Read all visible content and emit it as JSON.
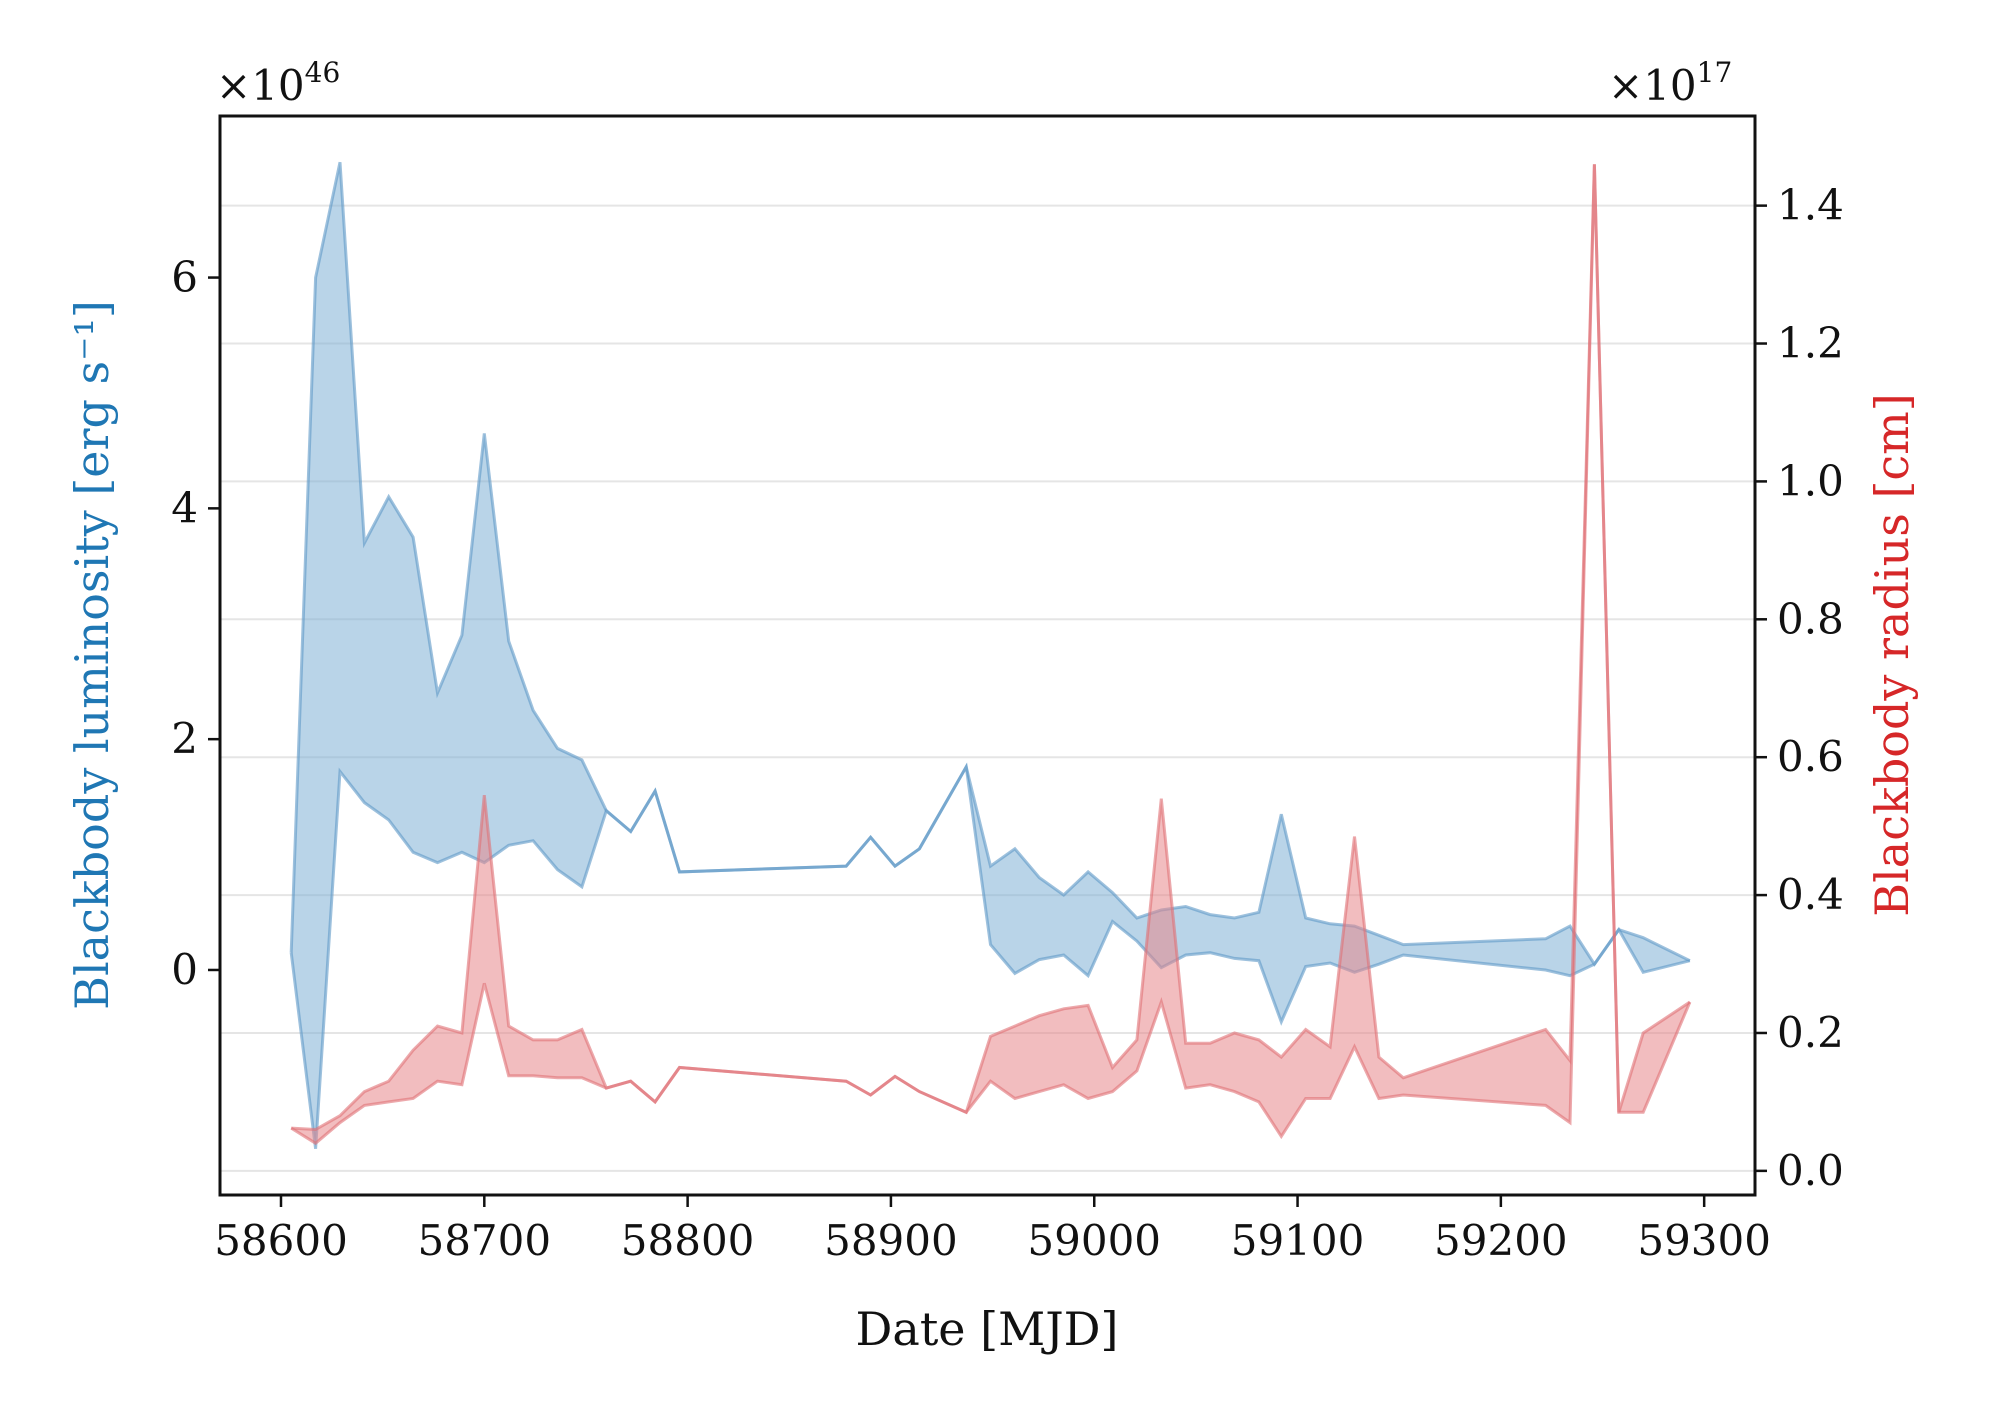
{
  "chart_data": {
    "type": "area",
    "xlabel": "Date [MJD]",
    "ylabel_left": "Blackbody luminosity [erg s⁻¹]",
    "ylabel_right": "Blackbody radius [cm]",
    "left_multiplier": {
      "base": "×10",
      "exp": "46"
    },
    "right_multiplier": {
      "base": "×10",
      "exp": "17"
    },
    "xlim": [
      58570,
      59325
    ],
    "ylim_left": [
      -1.95,
      7.4
    ],
    "ylim_right": [
      -0.035,
      1.53
    ],
    "x_ticks": [
      58600,
      58700,
      58800,
      58900,
      59000,
      59100,
      59200,
      59300
    ],
    "x_tick_labels": [
      "58600",
      "58700",
      "58800",
      "58900",
      "59000",
      "59100",
      "59200",
      "59300"
    ],
    "left_ticks": [
      0,
      2,
      4,
      6
    ],
    "left_tick_labels": [
      "0",
      "2",
      "4",
      "6"
    ],
    "right_ticks": [
      0.0,
      0.2,
      0.4,
      0.6,
      0.8,
      1.0,
      1.2,
      1.4
    ],
    "right_tick_labels": [
      "0.0",
      "0.2",
      "0.4",
      "0.6",
      "0.8",
      "1.0",
      "1.2",
      "1.4"
    ],
    "grid": "horizontal",
    "colors": {
      "luminosity_label": "#1f77b4",
      "radius_label": "#d62728",
      "luminosity_fill": "#7fb0d6",
      "luminosity_line": "#5d98c6",
      "radius_fill": "#e8868a",
      "radius_line": "#e06f75",
      "grid": "#e5e5e5"
    },
    "series": [
      {
        "axis": "left",
        "x": [
          58605,
          58617,
          58629,
          58641,
          58653,
          58665,
          58677,
          58689,
          58700,
          58712,
          58724,
          58736,
          58748,
          58760,
          58772,
          58784,
          58796,
          58878,
          58890,
          58902,
          58914,
          58937,
          58949,
          58961,
          58973,
          58985,
          58997,
          59009,
          59021,
          59033,
          59045,
          59057,
          59069,
          59081,
          59092,
          59104,
          59116,
          59128,
          59140,
          59152,
          59222,
          59234,
          59246,
          59258,
          59270,
          59293
        ],
        "upper": [
          0.15,
          6.0,
          7.0,
          3.7,
          4.1,
          3.75,
          2.4,
          2.9,
          4.65,
          2.85,
          2.25,
          1.92,
          1.82,
          1.38,
          1.2,
          1.55,
          0.85,
          0.9,
          1.15,
          0.9,
          1.05,
          1.76,
          0.9,
          1.05,
          0.8,
          0.65,
          0.85,
          0.67,
          0.45,
          0.52,
          0.55,
          0.48,
          0.45,
          0.5,
          1.35,
          0.45,
          0.4,
          0.38,
          0.3,
          0.22,
          0.27,
          0.38,
          0.05,
          0.35,
          0.28,
          0.08
        ],
        "lower": [
          0.15,
          -1.55,
          1.72,
          1.45,
          1.3,
          1.02,
          0.93,
          1.02,
          0.93,
          1.08,
          1.12,
          0.87,
          0.72,
          1.38,
          1.2,
          1.55,
          0.85,
          0.9,
          1.15,
          0.9,
          1.05,
          1.76,
          0.22,
          -0.03,
          0.09,
          0.13,
          -0.05,
          0.42,
          0.25,
          0.02,
          0.13,
          0.15,
          0.1,
          0.08,
          -0.45,
          0.03,
          0.06,
          -0.02,
          0.05,
          0.13,
          0.0,
          -0.05,
          0.05,
          0.35,
          -0.02,
          0.08
        ]
      },
      {
        "axis": "right",
        "x": [
          58605,
          58617,
          58629,
          58641,
          58653,
          58665,
          58677,
          58689,
          58700,
          58712,
          58724,
          58736,
          58748,
          58760,
          58772,
          58784,
          58796,
          58878,
          58890,
          58902,
          58914,
          58937,
          58949,
          58961,
          58973,
          58985,
          58997,
          59009,
          59021,
          59033,
          59045,
          59057,
          59069,
          59081,
          59092,
          59104,
          59116,
          59128,
          59140,
          59152,
          59222,
          59234,
          59246,
          59258,
          59270,
          59293
        ],
        "upper": [
          0.062,
          0.06,
          0.08,
          0.115,
          0.13,
          0.175,
          0.21,
          0.2,
          0.545,
          0.21,
          0.19,
          0.19,
          0.205,
          0.12,
          0.13,
          0.1,
          0.15,
          0.13,
          0.11,
          0.137,
          0.115,
          0.085,
          0.195,
          0.21,
          0.225,
          0.235,
          0.24,
          0.15,
          0.19,
          0.54,
          0.185,
          0.185,
          0.2,
          0.19,
          0.165,
          0.205,
          0.18,
          0.485,
          0.165,
          0.135,
          0.205,
          0.16,
          1.46,
          0.085,
          0.2,
          0.245
        ],
        "lower": [
          0.062,
          0.04,
          0.07,
          0.095,
          0.1,
          0.105,
          0.13,
          0.125,
          0.272,
          0.138,
          0.138,
          0.135,
          0.135,
          0.12,
          0.13,
          0.1,
          0.15,
          0.13,
          0.11,
          0.137,
          0.115,
          0.085,
          0.13,
          0.105,
          0.115,
          0.125,
          0.105,
          0.115,
          0.145,
          0.245,
          0.12,
          0.125,
          0.115,
          0.1,
          0.05,
          0.105,
          0.105,
          0.18,
          0.105,
          0.11,
          0.095,
          0.07,
          1.46,
          0.085,
          0.085,
          0.245
        ]
      }
    ]
  }
}
